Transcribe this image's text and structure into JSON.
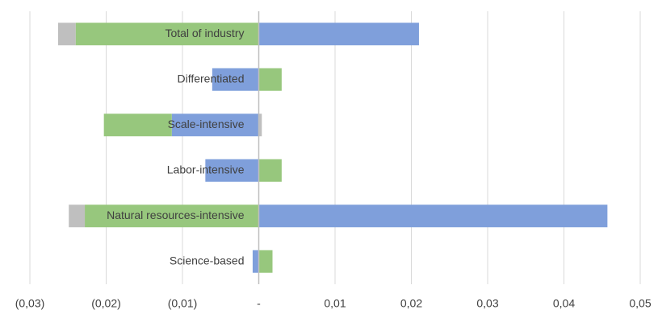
{
  "chart_data": {
    "type": "stacked_barh",
    "categories": [
      "Total of industry",
      "Differentiated",
      "Scale-intensive",
      "Labor-intensive",
      "Natural resources-intensive",
      "Science-based"
    ],
    "series": [
      {
        "color": "#7f9fdb",
        "values": [
          0.021,
          -0.0061,
          -0.0114,
          -0.007,
          0.0457,
          -0.0008
        ]
      },
      {
        "color": "#97c77d",
        "values": [
          -0.024,
          0.003,
          -0.0089,
          0.003,
          -0.0228,
          0.0018
        ]
      },
      {
        "color": "#bfbfbf",
        "values": [
          -0.0023,
          0,
          0.0004,
          0,
          -0.0021,
          0
        ]
      }
    ],
    "xlim": [
      -0.03,
      0.05
    ],
    "xticks": [
      {
        "value": -0.03,
        "label": "(0,03)"
      },
      {
        "value": -0.02,
        "label": "(0,02)"
      },
      {
        "value": -0.01,
        "label": "(0,01)"
      },
      {
        "value": 0,
        "label": "-"
      },
      {
        "value": 0.01,
        "label": "0,01"
      },
      {
        "value": 0.02,
        "label": "0,02"
      },
      {
        "value": 0.03,
        "label": "0,03"
      },
      {
        "value": 0.04,
        "label": "0,04"
      },
      {
        "value": 0.05,
        "label": "0,05"
      }
    ],
    "grid": true
  }
}
